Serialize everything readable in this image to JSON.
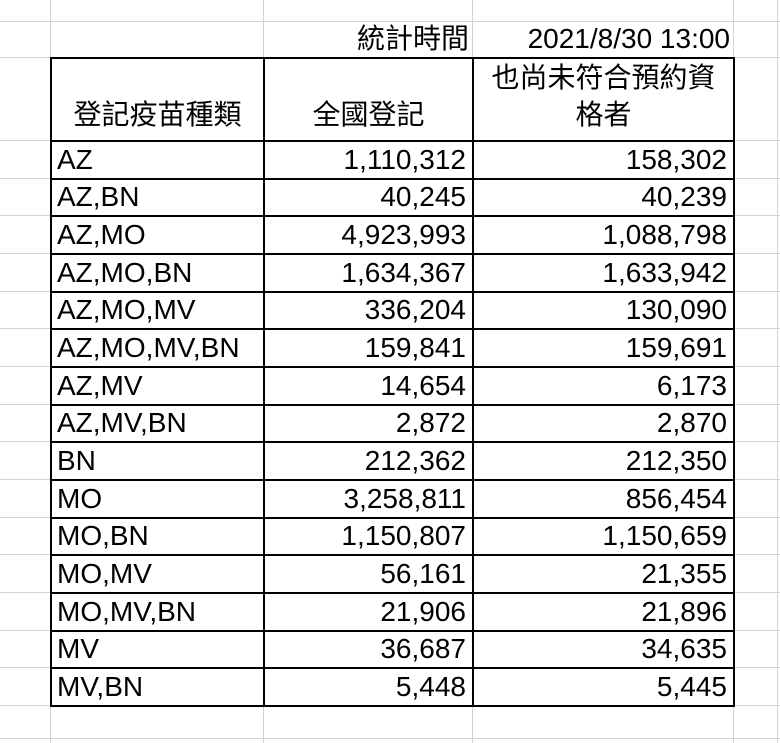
{
  "stat_header": {
    "label": "統計時間",
    "value": "2021/8/30 13:00"
  },
  "table": {
    "columns": [
      "登記疫苗種類",
      "全國登記",
      "也尚未符合預約資\n格者"
    ],
    "rows": [
      [
        "AZ",
        "1,110,312",
        "158,302"
      ],
      [
        "AZ,BN",
        "40,245",
        "40,239"
      ],
      [
        "AZ,MO",
        "4,923,993",
        "1,088,798"
      ],
      [
        "AZ,MO,BN",
        "1,634,367",
        "1,633,942"
      ],
      [
        "AZ,MO,MV",
        "336,204",
        "130,090"
      ],
      [
        "AZ,MO,MV,BN",
        "159,841",
        "159,691"
      ],
      [
        "AZ,MV",
        "14,654",
        "6,173"
      ],
      [
        "AZ,MV,BN",
        "2,872",
        "2,870"
      ],
      [
        "BN",
        "212,362",
        "212,350"
      ],
      [
        "MO",
        "3,258,811",
        "856,454"
      ],
      [
        "MO,BN",
        "1,150,807",
        "1,150,659"
      ],
      [
        "MO,MV",
        "56,161",
        "21,355"
      ],
      [
        "MO,MV,BN",
        "21,906",
        "21,896"
      ],
      [
        "MV",
        "36,687",
        "34,635"
      ],
      [
        "MV,BN",
        "5,448",
        "5,445"
      ]
    ]
  },
  "colors": {
    "background": "#ffffff",
    "text": "#000000",
    "table_border": "#000000",
    "gridline": "#d4d4d4"
  }
}
